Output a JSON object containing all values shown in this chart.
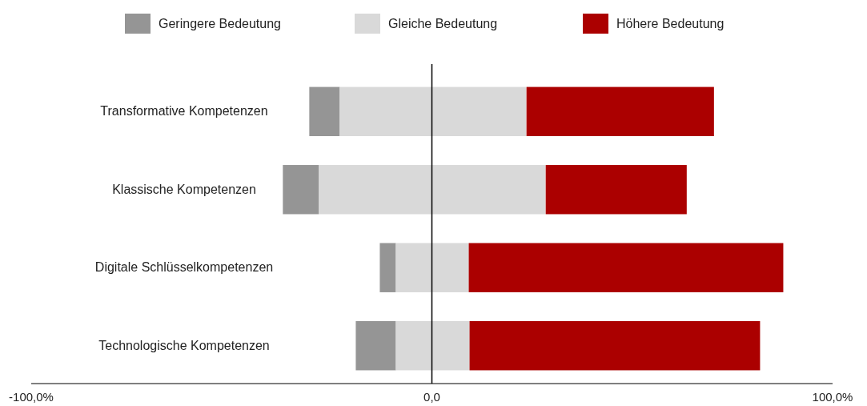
{
  "chart_data": {
    "type": "bar",
    "orientation": "horizontal",
    "categories": [
      "Transformative Kompetenzen",
      "Klassische Kompetenzen",
      "Digitale Schlüsselkompetenzen",
      "Technologische Kompetenzen"
    ],
    "series": [
      {
        "name": "Geringere Bedeutung",
        "color": "#959595",
        "base": [
          -30.6,
          -37.2,
          -13.0,
          -19.0
        ],
        "values": [
          7.6,
          9.0,
          4.0,
          10.0
        ]
      },
      {
        "name": "Gleiche Bedeutung",
        "color": "#d9d9d9",
        "base": [
          -23.0,
          -28.2,
          -9.0,
          -9.0
        ],
        "values": [
          46.5,
          56.5,
          18.2,
          18.4
        ]
      },
      {
        "name": "Höhere Bedeutung",
        "color": "#ab0000",
        "base": [
          23.6,
          28.4,
          9.2,
          9.4
        ],
        "values": [
          46.8,
          35.2,
          78.5,
          72.5
        ]
      }
    ],
    "xlim": [
      -100,
      100
    ],
    "xticks": [
      {
        "value": -100,
        "label": "-100,0%"
      },
      {
        "value": 0,
        "label": "0,0"
      },
      {
        "value": 100,
        "label": "100,0%"
      }
    ],
    "ref_lines": [
      {
        "axis": "x",
        "value": 0,
        "color": "#000000"
      }
    ],
    "legend": "top",
    "grid": false
  }
}
